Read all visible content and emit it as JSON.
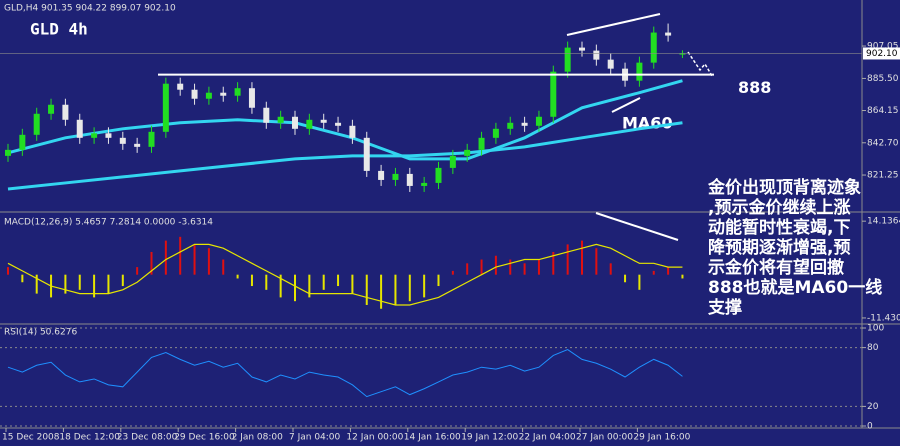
{
  "chart_data": [
    {
      "type": "candlestick",
      "title": "GLD,H4  901.35 904.22 899.07 902.10",
      "subtitle": "GLD 4h",
      "open": [
        834,
        838,
        848,
        862,
        868,
        858,
        846,
        849,
        846,
        842,
        840,
        850,
        882,
        878,
        872,
        876,
        874,
        879,
        866,
        856,
        860,
        852,
        858,
        856,
        854,
        846,
        824,
        818,
        822,
        814,
        816,
        826,
        834,
        838,
        846,
        852,
        856,
        854,
        860,
        890,
        906,
        904,
        898,
        892,
        884,
        896,
        916,
        901.35
      ],
      "high": [
        842,
        852,
        866,
        872,
        872,
        862,
        853,
        853,
        850,
        846,
        854,
        886,
        886,
        882,
        880,
        880,
        883,
        883,
        870,
        864,
        864,
        862,
        862,
        860,
        858,
        850,
        828,
        826,
        826,
        820,
        830,
        838,
        842,
        850,
        856,
        860,
        860,
        864,
        894,
        910,
        910,
        908,
        902,
        896,
        900,
        920,
        922,
        904.22
      ],
      "low": [
        830,
        834,
        844,
        858,
        854,
        842,
        842,
        842,
        838,
        836,
        836,
        846,
        874,
        868,
        868,
        870,
        870,
        862,
        852,
        852,
        848,
        848,
        852,
        850,
        842,
        820,
        814,
        814,
        810,
        810,
        812,
        822,
        830,
        834,
        842,
        848,
        850,
        850,
        856,
        886,
        900,
        894,
        888,
        880,
        880,
        892,
        910,
        899.07
      ],
      "close": [
        838,
        848,
        862,
        868,
        858,
        846,
        849,
        846,
        842,
        840,
        850,
        882,
        878,
        872,
        876,
        874,
        879,
        866,
        856,
        860,
        852,
        858,
        856,
        854,
        846,
        824,
        818,
        822,
        814,
        816,
        826,
        834,
        838,
        846,
        852,
        856,
        854,
        860,
        890,
        906,
        904,
        898,
        892,
        884,
        896,
        916,
        914,
        902.1
      ],
      "up_color": "#22dd22",
      "down_color": "#e8e8e8",
      "ylim": [
        798,
        935
      ],
      "yticks": [
        907.05,
        {
          "value": 885.5,
          "label": "885.50"
        },
        864.15,
        {
          "value": 842.7,
          "label": "842.70"
        },
        821.25
      ],
      "current_price": {
        "value": 902.1,
        "label": "902.10"
      },
      "support": 888,
      "ma_x": [
        0,
        4,
        8,
        12,
        16,
        20,
        24,
        28,
        32,
        36,
        40,
        44,
        47
      ],
      "ma_lines": [
        {
          "label": "MA60",
          "color": "#33d6f0",
          "values": [
            836,
            846,
            852,
            856,
            858,
            856,
            846,
            832,
            832,
            846,
            866,
            876,
            884
          ]
        },
        {
          "color": "#33d6f0",
          "values": [
            812,
            816,
            820,
            824,
            828,
            832,
            834,
            834,
            836,
            840,
            846,
            852,
            856
          ]
        }
      ]
    },
    {
      "type": "macd",
      "title": "MACD(12,26,9) 5.4657 7.2814 0.0000 -3.6314",
      "values": [
        2,
        -2,
        -5,
        -6,
        -5,
        -4,
        -6,
        -5,
        -3,
        2,
        6,
        9,
        10,
        8,
        7,
        4,
        -1,
        -3,
        -4,
        -6,
        -7,
        -6,
        -4,
        -3,
        -5,
        -8,
        -9,
        -8,
        -7,
        -6,
        -3,
        1,
        3,
        4,
        5,
        4,
        3,
        4,
        6,
        8,
        9,
        7,
        3,
        -2,
        -4,
        1,
        2,
        -1
      ],
      "signal": [
        3,
        1,
        -1,
        -3,
        -4,
        -5,
        -5,
        -5,
        -4,
        -2,
        1,
        4,
        6,
        8,
        8,
        7,
        5,
        3,
        1,
        -1,
        -3,
        -5,
        -5,
        -5,
        -5,
        -6,
        -7,
        -8,
        -8,
        -7,
        -6,
        -4,
        -2,
        0,
        2,
        3,
        4,
        4,
        5,
        6,
        7,
        8,
        7,
        5,
        3,
        3,
        2,
        2
      ],
      "pos_color": "#e01010",
      "neg_color": "#e6e600",
      "signal_color": "#e6e600",
      "ylim": [
        -12.5,
        15.5
      ],
      "yticks": [
        14.1364,
        -11.4308
      ]
    },
    {
      "type": "line",
      "title": "RSI(14) 50.6276",
      "values": [
        60,
        55,
        62,
        65,
        52,
        45,
        48,
        42,
        40,
        55,
        70,
        75,
        68,
        62,
        66,
        60,
        64,
        50,
        45,
        52,
        48,
        55,
        52,
        50,
        42,
        30,
        35,
        40,
        32,
        38,
        45,
        52,
        55,
        60,
        58,
        62,
        56,
        60,
        72,
        78,
        68,
        64,
        58,
        50,
        60,
        68,
        62,
        50.6276
      ],
      "color": "#1e90ff",
      "ylim": [
        0,
        100
      ],
      "yticks": [
        100,
        80,
        20,
        0
      ]
    }
  ],
  "time_axis": [
    "15 Dec 2008",
    "18 Dec 12:00",
    "23 Dec 08:00",
    "29 Dec 16:00",
    "2 Jan 08:00",
    "7 Jan 04:00",
    "12 Jan 00:00",
    "14 Jan 16:00",
    "19 Jan 12:00",
    "22 Jan 04:00",
    "27 Jan 00:00",
    "29 Jan 16:00"
  ],
  "annotation_text": [
    "金价出现顶背离迹象",
    ",预示金价继续上涨",
    "动能暂时性衰竭,下",
    "降预期逐渐增强,预",
    "示金价将有望回撤",
    "888也就是MA60一线",
    "支撑"
  ]
}
